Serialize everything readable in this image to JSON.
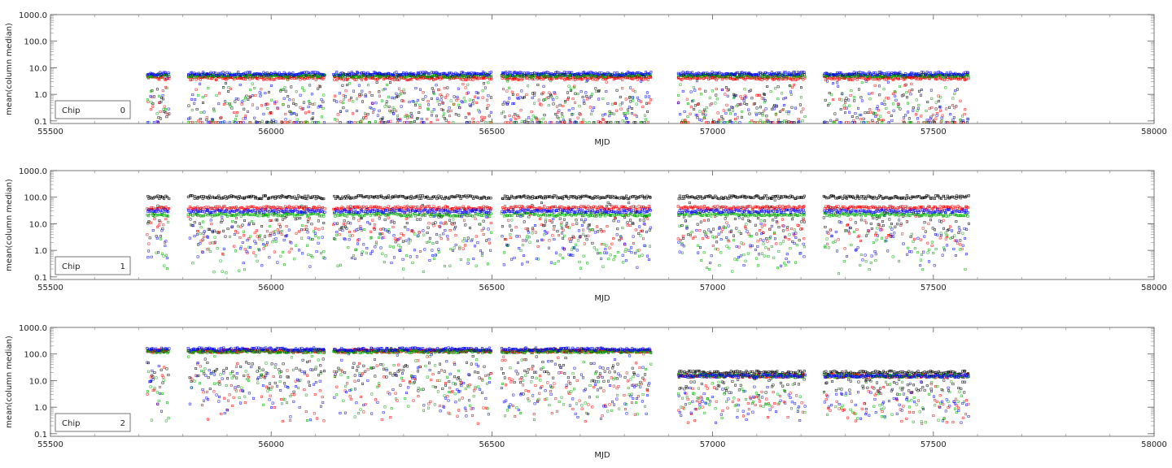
{
  "chart_data": [
    {
      "type": "scatter",
      "xlabel": "MJD",
      "ylabel": "mean(column median)",
      "x_ticks": [
        "55500",
        "56000",
        "56500",
        "57000",
        "57500",
        "58000"
      ],
      "y_ticks": [
        "0.1",
        "1.0",
        "10.0",
        "100.0",
        "1000.0"
      ],
      "xlim": [
        55500,
        58000
      ],
      "ylim": [
        0.08,
        1000
      ],
      "yscale": "log",
      "legend": {
        "label": "Chip",
        "value": "0",
        "position": "bottom-left"
      },
      "series_colors": [
        "#000000",
        "#ff0000",
        "#00aa00",
        "#0000ff"
      ],
      "gaps": [
        [
          55770,
          55810
        ],
        [
          56120,
          56140
        ],
        [
          56500,
          56520
        ],
        [
          56860,
          56920
        ],
        [
          57210,
          57250
        ]
      ],
      "data_extent": [
        55720,
        57580
      ],
      "series": [
        {
          "color": "#000000",
          "level": 5.0,
          "low": 0.1
        },
        {
          "color": "#ff0000",
          "level": 4.0,
          "low": 0.1
        },
        {
          "color": "#00aa00",
          "level": 5.0,
          "low": 0.1
        },
        {
          "color": "#0000ff",
          "level": 6.0,
          "low": 0.1
        }
      ]
    },
    {
      "type": "scatter",
      "xlabel": "MJD",
      "ylabel": "mean(column median)",
      "x_ticks": [
        "55500",
        "56000",
        "56500",
        "57000",
        "57500",
        "58000"
      ],
      "y_ticks": [
        "0.1",
        "1.0",
        "10.0",
        "100.0",
        "1000.0"
      ],
      "xlim": [
        55500,
        58000
      ],
      "ylim": [
        0.08,
        1000
      ],
      "yscale": "log",
      "legend": {
        "label": "Chip",
        "value": "1",
        "position": "bottom-left"
      },
      "series_colors": [
        "#000000",
        "#ff0000",
        "#00aa00",
        "#0000ff"
      ],
      "gaps": [
        [
          55770,
          55810
        ],
        [
          56120,
          56140
        ],
        [
          56500,
          56520
        ],
        [
          56860,
          56920
        ],
        [
          57210,
          57250
        ]
      ],
      "data_extent": [
        55720,
        57580
      ],
      "series": [
        {
          "color": "#000000",
          "level": 100.0,
          "low": 8.0
        },
        {
          "color": "#ff0000",
          "level": 40.0,
          "low": 3.0
        },
        {
          "color": "#00aa00",
          "level": 22.0,
          "low": 0.5
        },
        {
          "color": "#0000ff",
          "level": 30.0,
          "low": 1.0
        }
      ]
    },
    {
      "type": "scatter",
      "xlabel": "MJD",
      "ylabel": "mean(column median)",
      "x_ticks": [
        "55500",
        "56000",
        "56500",
        "57000",
        "57500",
        "58000"
      ],
      "y_ticks": [
        "0.1",
        "1.0",
        "10.0",
        "100.0",
        "1000.0"
      ],
      "xlim": [
        55500,
        58000
      ],
      "ylim": [
        0.08,
        1000
      ],
      "yscale": "log",
      "legend": {
        "label": "Chip",
        "value": "2",
        "position": "bottom-left"
      },
      "series_colors": [
        "#000000",
        "#ff0000",
        "#00aa00",
        "#0000ff"
      ],
      "gaps": [
        [
          55770,
          55810
        ],
        [
          56120,
          56140
        ],
        [
          56500,
          56520
        ],
        [
          56860,
          56920
        ],
        [
          57210,
          57250
        ]
      ],
      "data_extent": [
        55720,
        57580
      ],
      "series": [
        {
          "color": "#000000",
          "level": 130.0,
          "low": 15.0,
          "late_level": 20.0
        },
        {
          "color": "#ff0000",
          "level": 130.0,
          "low": 1.0,
          "late_level": 15.0
        },
        {
          "color": "#00aa00",
          "level": 125.0,
          "low": 1.0,
          "late_level": 15.0
        },
        {
          "color": "#0000ff",
          "level": 150.0,
          "low": 1.0,
          "late_level": 15.0
        }
      ]
    }
  ]
}
